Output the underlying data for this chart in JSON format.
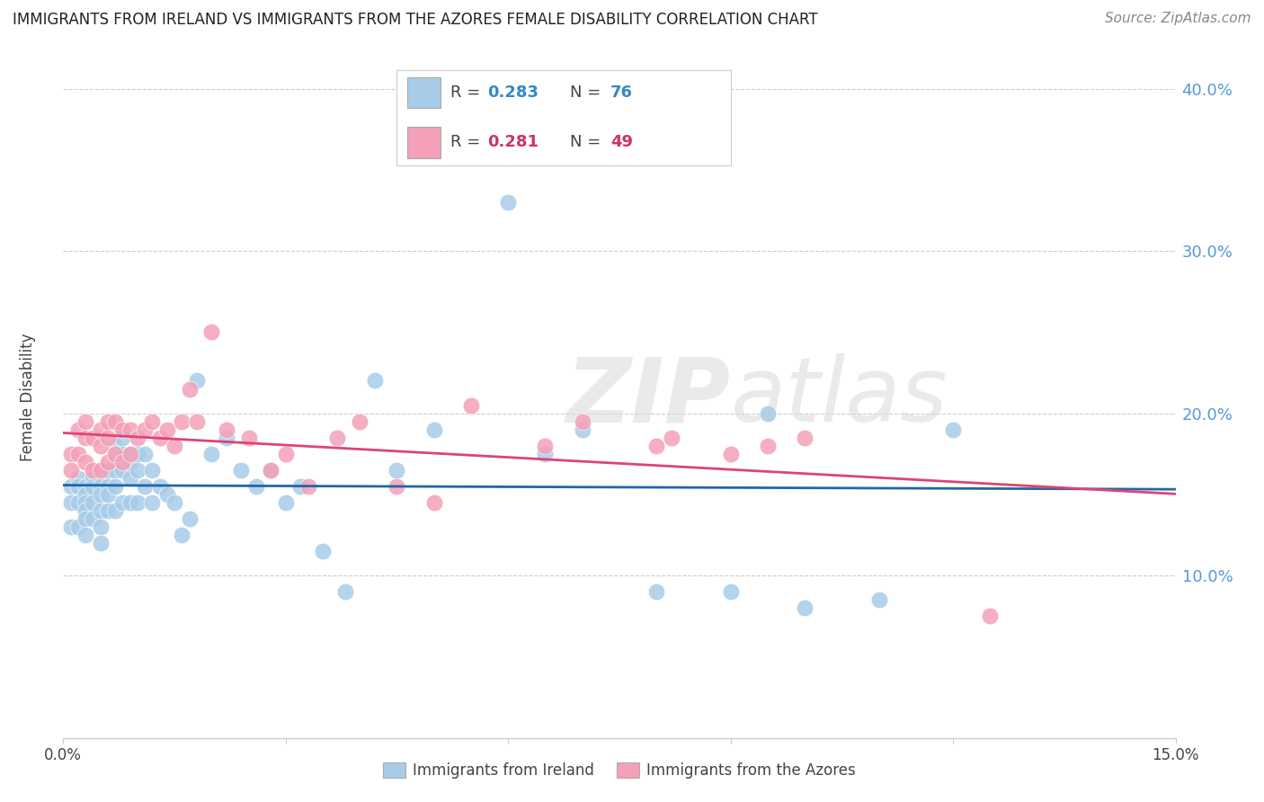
{
  "title": "IMMIGRANTS FROM IRELAND VS IMMIGRANTS FROM THE AZORES FEMALE DISABILITY CORRELATION CHART",
  "source": "Source: ZipAtlas.com",
  "ylabel": "Female Disability",
  "xlim": [
    0.0,
    0.15
  ],
  "ylim": [
    0.0,
    0.42
  ],
  "xticks": [
    0.0,
    0.03,
    0.06,
    0.09,
    0.12,
    0.15
  ],
  "xtick_labels": [
    "0.0%",
    "",
    "",
    "",
    "",
    "15.0%"
  ],
  "ytick_positions": [
    0.1,
    0.2,
    0.3,
    0.4
  ],
  "ytick_labels": [
    "10.0%",
    "20.0%",
    "30.0%",
    "40.0%"
  ],
  "ireland_color": "#a8cce8",
  "azores_color": "#f4a0b8",
  "ireland_line_color": "#2266aa",
  "azores_line_color": "#dd4477",
  "ireland_R": "0.283",
  "ireland_N": "76",
  "azores_R": "0.281",
  "azores_N": "49",
  "watermark_zip": "ZIP",
  "watermark_atlas": "atlas",
  "background_color": "#ffffff",
  "grid_color": "#cccccc",
  "legend_text_color": "#444444",
  "legend_value_color": "#3388cc",
  "azores_legend_value_color": "#cc3366",
  "ireland_x": [
    0.001,
    0.001,
    0.001,
    0.002,
    0.002,
    0.002,
    0.002,
    0.003,
    0.003,
    0.003,
    0.003,
    0.003,
    0.003,
    0.004,
    0.004,
    0.004,
    0.004,
    0.004,
    0.005,
    0.005,
    0.005,
    0.005,
    0.005,
    0.005,
    0.005,
    0.006,
    0.006,
    0.006,
    0.006,
    0.007,
    0.007,
    0.007,
    0.007,
    0.007,
    0.008,
    0.008,
    0.008,
    0.008,
    0.009,
    0.009,
    0.009,
    0.009,
    0.01,
    0.01,
    0.01,
    0.011,
    0.011,
    0.012,
    0.012,
    0.013,
    0.014,
    0.015,
    0.016,
    0.017,
    0.018,
    0.02,
    0.022,
    0.024,
    0.026,
    0.028,
    0.03,
    0.032,
    0.035,
    0.038,
    0.042,
    0.045,
    0.05,
    0.06,
    0.065,
    0.07,
    0.08,
    0.09,
    0.095,
    0.1,
    0.11,
    0.12
  ],
  "ireland_y": [
    0.155,
    0.145,
    0.13,
    0.16,
    0.155,
    0.145,
    0.13,
    0.155,
    0.15,
    0.145,
    0.14,
    0.135,
    0.125,
    0.165,
    0.16,
    0.155,
    0.145,
    0.135,
    0.165,
    0.16,
    0.155,
    0.15,
    0.14,
    0.13,
    0.12,
    0.165,
    0.155,
    0.15,
    0.14,
    0.18,
    0.175,
    0.165,
    0.155,
    0.14,
    0.185,
    0.175,
    0.165,
    0.145,
    0.175,
    0.17,
    0.16,
    0.145,
    0.175,
    0.165,
    0.145,
    0.175,
    0.155,
    0.165,
    0.145,
    0.155,
    0.15,
    0.145,
    0.125,
    0.135,
    0.22,
    0.175,
    0.185,
    0.165,
    0.155,
    0.165,
    0.145,
    0.155,
    0.115,
    0.09,
    0.22,
    0.165,
    0.19,
    0.33,
    0.175,
    0.19,
    0.09,
    0.09,
    0.2,
    0.08,
    0.085,
    0.19
  ],
  "azores_x": [
    0.001,
    0.001,
    0.002,
    0.002,
    0.003,
    0.003,
    0.003,
    0.004,
    0.004,
    0.005,
    0.005,
    0.005,
    0.006,
    0.006,
    0.006,
    0.007,
    0.007,
    0.008,
    0.008,
    0.009,
    0.009,
    0.01,
    0.011,
    0.012,
    0.013,
    0.014,
    0.015,
    0.016,
    0.017,
    0.018,
    0.02,
    0.022,
    0.025,
    0.028,
    0.03,
    0.033,
    0.037,
    0.04,
    0.045,
    0.05,
    0.055,
    0.065,
    0.07,
    0.08,
    0.082,
    0.09,
    0.095,
    0.1,
    0.125
  ],
  "azores_y": [
    0.175,
    0.165,
    0.19,
    0.175,
    0.195,
    0.185,
    0.17,
    0.185,
    0.165,
    0.19,
    0.18,
    0.165,
    0.195,
    0.185,
    0.17,
    0.195,
    0.175,
    0.19,
    0.17,
    0.19,
    0.175,
    0.185,
    0.19,
    0.195,
    0.185,
    0.19,
    0.18,
    0.195,
    0.215,
    0.195,
    0.25,
    0.19,
    0.185,
    0.165,
    0.175,
    0.155,
    0.185,
    0.195,
    0.155,
    0.145,
    0.205,
    0.18,
    0.195,
    0.18,
    0.185,
    0.175,
    0.18,
    0.185,
    0.075
  ]
}
